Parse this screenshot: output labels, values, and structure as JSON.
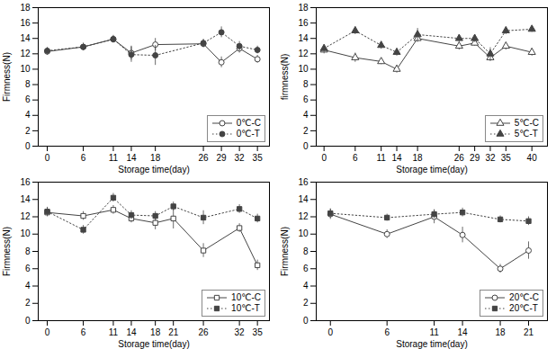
{
  "chart_data": [
    {
      "type": "line",
      "x": [
        0,
        6,
        11,
        14,
        18,
        26,
        29,
        32,
        35
      ],
      "series": [
        {
          "name": "0℃-C",
          "color": "#444444",
          "marker": "circle-open",
          "line_style": "solid",
          "values": [
            12.3,
            12.9,
            13.9,
            12.1,
            13.2,
            13.3,
            10.9,
            12.7,
            11.3
          ],
          "yerr": [
            0.5,
            0.5,
            0.5,
            0.9,
            0.8,
            0.5,
            0.7,
            0.6,
            0.5
          ]
        },
        {
          "name": "0℃-T",
          "color": "#444444",
          "marker": "circle",
          "line_style": "dotted",
          "values": [
            12.4,
            12.9,
            13.9,
            11.9,
            11.8,
            13.4,
            14.8,
            13.0,
            12.5
          ],
          "yerr": [
            0.4,
            0.4,
            0.4,
            1.0,
            1.3,
            0.5,
            0.7,
            0.6,
            0.5
          ]
        }
      ],
      "xlabel": "Storage time(day)",
      "ylabel": "Firmness(N)",
      "xlim": [
        -1.5,
        37
      ],
      "ylim": [
        0,
        18
      ],
      "xticks": [
        0,
        6,
        11,
        14,
        18,
        26,
        29,
        32,
        35
      ],
      "yticks": [
        0,
        2,
        4,
        6,
        8,
        10,
        12,
        14,
        16,
        18
      ],
      "legend": "lower right"
    },
    {
      "type": "line",
      "x": [
        0,
        6,
        11,
        14,
        18,
        26,
        29,
        32,
        35,
        40
      ],
      "series": [
        {
          "name": "5℃-C",
          "color": "#444444",
          "marker": "triangle-open",
          "line_style": "solid",
          "values": [
            12.5,
            11.5,
            11.0,
            10.0,
            14.0,
            13.0,
            13.4,
            11.5,
            13.0,
            12.2
          ],
          "yerr": [
            0.5,
            0.6,
            0.4,
            0.5,
            0.5,
            0.5,
            0.4,
            0.5,
            0.5,
            0.5
          ]
        },
        {
          "name": "5℃-T",
          "color": "#444444",
          "marker": "triangle",
          "line_style": "dotted",
          "values": [
            12.7,
            15.0,
            13.1,
            12.2,
            14.5,
            14.0,
            14.0,
            12.0,
            15.0,
            15.2
          ],
          "yerr": [
            0.5,
            0.5,
            0.5,
            0.5,
            0.8,
            0.5,
            0.5,
            0.8,
            0.5,
            0.4
          ]
        }
      ],
      "xlabel": "Storage time(day)",
      "ylabel": "firmness(N)",
      "xlim": [
        -1.5,
        43
      ],
      "ylim": [
        0,
        18
      ],
      "xticks": [
        0,
        6,
        11,
        14,
        18,
        26,
        29,
        32,
        35,
        40
      ],
      "yticks": [
        0,
        2,
        4,
        6,
        8,
        10,
        12,
        14,
        16,
        18
      ],
      "legend": "lower right"
    },
    {
      "type": "line",
      "x": [
        0,
        6,
        11,
        14,
        18,
        21,
        26,
        32,
        35
      ],
      "series": [
        {
          "name": "10℃-C",
          "color": "#444444",
          "marker": "square-open",
          "line_style": "solid",
          "values": [
            12.5,
            12.1,
            12.8,
            11.8,
            11.3,
            11.8,
            8.1,
            10.7,
            6.4
          ],
          "yerr": [
            0.5,
            0.5,
            0.5,
            0.5,
            0.8,
            1.2,
            0.8,
            0.5,
            0.6
          ]
        },
        {
          "name": "10℃-T",
          "color": "#444444",
          "marker": "square",
          "line_style": "dotted",
          "values": [
            12.6,
            10.5,
            14.2,
            12.2,
            12.1,
            13.2,
            11.9,
            12.9,
            11.8
          ],
          "yerr": [
            0.5,
            0.5,
            0.5,
            0.5,
            0.5,
            0.5,
            0.8,
            0.5,
            0.5
          ]
        }
      ],
      "xlabel": "Storage time(day)",
      "ylabel": "Firmness(N)",
      "xlim": [
        -1.5,
        37
      ],
      "ylim": [
        0,
        16
      ],
      "xticks": [
        0,
        6,
        11,
        14,
        18,
        21,
        26,
        32,
        35
      ],
      "yticks": [
        0,
        2,
        4,
        6,
        8,
        10,
        12,
        14,
        16
      ],
      "legend": "lower right"
    },
    {
      "type": "line",
      "x": [
        0,
        6,
        11,
        14,
        18,
        21
      ],
      "series": [
        {
          "name": "20℃-C",
          "color": "#444444",
          "marker": "circle-open",
          "line_style": "solid",
          "values": [
            12.3,
            10.0,
            12.0,
            9.9,
            6.0,
            8.1
          ],
          "yerr": [
            0.6,
            0.5,
            0.8,
            0.9,
            0.5,
            1.0
          ]
        },
        {
          "name": "20℃-T",
          "color": "#444444",
          "marker": "square",
          "line_style": "dotted",
          "values": [
            12.4,
            11.9,
            12.3,
            12.5,
            11.7,
            11.5
          ],
          "yerr": [
            0.5,
            0.4,
            0.5,
            0.5,
            0.4,
            0.5
          ]
        }
      ],
      "xlabel": "Storage time(day)",
      "ylabel": "Firmness(N)",
      "xlim": [
        -1.5,
        23
      ],
      "ylim": [
        0,
        16
      ],
      "xticks": [
        0,
        6,
        11,
        14,
        18,
        21
      ],
      "yticks": [
        0,
        2,
        4,
        6,
        8,
        10,
        12,
        14,
        16
      ],
      "legend": "lower right"
    }
  ]
}
